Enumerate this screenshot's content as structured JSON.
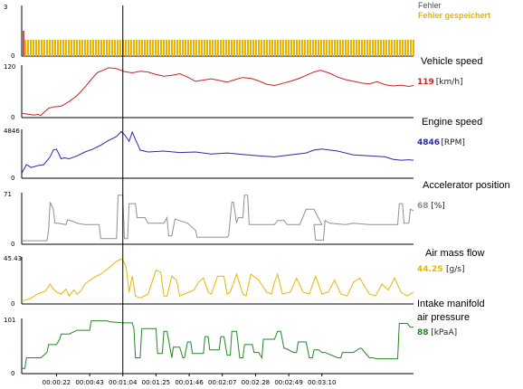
{
  "colors": {
    "fehler": "#505050",
    "fehler_gespeichert": "#e8b400",
    "vehicle_speed": "#cc2222",
    "engine_speed": "#2a2aa8",
    "accelerator": "#909090",
    "air_mass": "#e8b400",
    "intake_pressure": "#228822",
    "cursor": "#000000",
    "frame": "#000000"
  },
  "chart_data": [
    {
      "type": "bar",
      "id": "faults",
      "legend": [
        "Fehler",
        "Fehler gespeichert"
      ],
      "ylim": [
        0,
        3
      ],
      "yticks": [
        "3",
        "0"
      ],
      "values_note": "",
      "fill_level": 1
    },
    {
      "type": "line",
      "id": "vehicle_speed",
      "title": "Vehicle speed",
      "readout_value": "119",
      "readout_unit": "[km/h]",
      "ylim": [
        0,
        120
      ],
      "yticks": [
        "120",
        "0"
      ],
      "x": [
        0,
        4,
        8,
        10,
        12,
        14,
        17,
        20,
        25,
        30,
        35,
        40,
        45,
        48,
        52,
        55,
        60,
        65,
        70,
        75,
        80,
        85,
        90,
        95,
        100,
        105,
        110,
        115,
        120,
        125,
        130,
        135,
        140,
        145,
        150,
        155,
        160,
        165,
        170,
        175,
        180,
        185,
        189,
        195,
        200,
        205,
        210,
        215,
        220,
        225,
        230,
        235,
        240,
        245,
        248
      ],
      "y": [
        10,
        8,
        6,
        8,
        5,
        12,
        22,
        25,
        27,
        38,
        52,
        72,
        95,
        107,
        113,
        118,
        116,
        109,
        106,
        110,
        108,
        102,
        98,
        100,
        104,
        96,
        86,
        89,
        92,
        88,
        84,
        90,
        95,
        93,
        87,
        79,
        76,
        81,
        86,
        92,
        100,
        108,
        112,
        105,
        96,
        90,
        86,
        82,
        80,
        85,
        78,
        75,
        77,
        74,
        76
      ]
    },
    {
      "type": "line",
      "id": "engine_speed",
      "title": "Engine  speed",
      "readout_value": "4846",
      "readout_unit": "[RPM]",
      "ylim": [
        0,
        4846
      ],
      "yticks": [
        "4846",
        "0"
      ],
      "x": [
        0,
        3,
        6,
        10,
        14,
        18,
        20,
        22,
        25,
        27,
        30,
        35,
        40,
        45,
        50,
        55,
        60,
        63,
        65,
        68,
        70,
        75,
        80,
        90,
        100,
        110,
        120,
        130,
        140,
        150,
        160,
        170,
        180,
        185,
        190,
        200,
        210,
        220,
        230,
        235,
        240,
        245,
        248
      ],
      "y": [
        500,
        1400,
        1100,
        1300,
        1400,
        2200,
        2900,
        3000,
        2000,
        2100,
        2000,
        2300,
        2700,
        3000,
        3400,
        3900,
        4300,
        4800,
        4500,
        3800,
        4750,
        2900,
        2700,
        2800,
        2650,
        2700,
        2500,
        2600,
        2450,
        2300,
        2200,
        2400,
        2600,
        2900,
        3000,
        2800,
        2400,
        2300,
        2200,
        1950,
        1850,
        1900,
        1850
      ]
    },
    {
      "type": "line",
      "id": "accelerator",
      "title": "Accelerator position",
      "readout_value": "68",
      "readout_unit": "[%]",
      "ylim": [
        0,
        71
      ],
      "yticks": [
        "71",
        "0"
      ],
      "x": [
        0,
        16,
        17,
        18,
        20,
        21,
        23,
        28,
        29,
        32,
        35,
        40,
        43,
        49,
        50,
        60,
        61,
        64,
        65,
        67,
        68,
        72,
        73,
        78,
        80,
        90,
        92,
        93,
        95,
        97,
        105,
        110,
        111,
        115,
        120,
        130,
        131,
        133,
        134,
        136,
        137,
        140,
        141,
        143,
        144,
        150,
        157,
        160,
        162,
        166,
        168,
        170,
        176,
        180,
        185,
        190,
        185,
        186,
        191,
        192,
        195,
        205,
        210,
        220,
        230,
        234,
        236,
        238,
        239,
        241,
        242,
        245,
        246,
        248
      ],
      "y": [
        5,
        5,
        20,
        60,
        50,
        30,
        30,
        28,
        35,
        33,
        30,
        28,
        28,
        28,
        8,
        8,
        70,
        70,
        8,
        8,
        58,
        58,
        38,
        38,
        30,
        30,
        38,
        12,
        12,
        36,
        30,
        20,
        10,
        10,
        10,
        10,
        12,
        60,
        60,
        30,
        38,
        38,
        70,
        70,
        28,
        28,
        28,
        28,
        34,
        34,
        28,
        28,
        28,
        50,
        50,
        28,
        28,
        6,
        6,
        34,
        30,
        28,
        30,
        28,
        28,
        28,
        28,
        28,
        58,
        58,
        30,
        30,
        50,
        48
      ]
    },
    {
      "type": "line",
      "id": "air_mass",
      "title": "Air mass flow",
      "readout_value": "44.25",
      "readout_unit": "[g/s]",
      "ylim": [
        0,
        45.43
      ],
      "yticks": [
        "45.43",
        "0"
      ],
      "x": [
        0,
        5,
        10,
        15,
        18,
        20,
        22,
        25,
        28,
        30,
        33,
        35,
        38,
        40,
        45,
        50,
        55,
        60,
        63,
        64,
        66,
        68,
        70,
        72,
        75,
        80,
        85,
        88,
        90,
        92,
        95,
        98,
        100,
        103,
        106,
        109,
        112,
        115,
        118,
        120,
        124,
        128,
        130,
        132,
        136,
        140,
        142,
        145,
        150,
        155,
        158,
        160,
        162,
        165,
        170,
        174,
        178,
        182,
        186,
        190,
        194,
        198,
        202,
        206,
        210,
        214,
        220,
        224,
        228,
        232,
        236,
        240,
        244,
        248
      ],
      "y": [
        3,
        5,
        10,
        13,
        20,
        15,
        12,
        10,
        15,
        8,
        14,
        10,
        14,
        20,
        26,
        30,
        36,
        43,
        45,
        44,
        38,
        12,
        28,
        8,
        6,
        10,
        34,
        32,
        8,
        8,
        28,
        24,
        8,
        10,
        12,
        14,
        22,
        26,
        12,
        10,
        28,
        28,
        10,
        12,
        30,
        10,
        8,
        30,
        24,
        12,
        10,
        22,
        30,
        10,
        12,
        26,
        12,
        10,
        28,
        10,
        12,
        24,
        10,
        8,
        22,
        26,
        10,
        8,
        20,
        14,
        26,
        12,
        8,
        12
      ]
    },
    {
      "type": "line",
      "id": "intake_pressure",
      "title": "Intake manifold\nair pressure",
      "title_line1": "Intake manifold",
      "title_line2": "air pressure",
      "readout_value": "88",
      "readout_unit": "[kPaA]",
      "ylim": [
        0,
        101
      ],
      "yticks": [
        "101",
        "0"
      ],
      "x": [
        0,
        2,
        3,
        12,
        16,
        17,
        22,
        24,
        25,
        30,
        35,
        38,
        43,
        44,
        50,
        54,
        56,
        60,
        64,
        70,
        71,
        72,
        75,
        76,
        80,
        85,
        86,
        89,
        90,
        92,
        95,
        96,
        100,
        102,
        103,
        105,
        107,
        108,
        115,
        116,
        118,
        119,
        125,
        126,
        128,
        130,
        132,
        133,
        136,
        138,
        140,
        141,
        146,
        147,
        150,
        152,
        153,
        160,
        162,
        164,
        166,
        167,
        172,
        174,
        175,
        180,
        182,
        184,
        185,
        188,
        190,
        192,
        200,
        202,
        203,
        210,
        214,
        215,
        220,
        222,
        225,
        230,
        234,
        238,
        239,
        244,
        246,
        248
      ],
      "y": [
        10,
        10,
        30,
        30,
        40,
        55,
        55,
        65,
        75,
        75,
        82,
        82,
        82,
        100,
        100,
        100,
        98,
        97,
        96,
        96,
        85,
        30,
        30,
        85,
        85,
        85,
        38,
        38,
        80,
        80,
        30,
        50,
        50,
        30,
        30,
        60,
        60,
        38,
        38,
        70,
        70,
        45,
        45,
        70,
        70,
        35,
        35,
        80,
        80,
        30,
        30,
        55,
        55,
        40,
        40,
        30,
        65,
        65,
        80,
        80,
        48,
        48,
        40,
        40,
        60,
        60,
        30,
        30,
        45,
        45,
        40,
        40,
        30,
        30,
        40,
        40,
        48,
        48,
        30,
        30,
        28,
        28,
        28,
        28,
        95,
        95,
        88,
        88
      ]
    }
  ],
  "time_axis": {
    "xlim": [
      0,
      248
    ],
    "ticks": [
      {
        "x": 22,
        "label": "00:00:22"
      },
      {
        "x": 43,
        "label": "00:00:43"
      },
      {
        "x": 64,
        "label": "00:01:04"
      },
      {
        "x": 85,
        "label": "00:01:25"
      },
      {
        "x": 106,
        "label": "00:01:46"
      },
      {
        "x": 127,
        "label": "00:02:07"
      },
      {
        "x": 148,
        "label": "00:02:28"
      },
      {
        "x": 169,
        "label": "00:02:49"
      },
      {
        "x": 190,
        "label": "00:03:10"
      }
    ],
    "cursor_x": 64
  }
}
